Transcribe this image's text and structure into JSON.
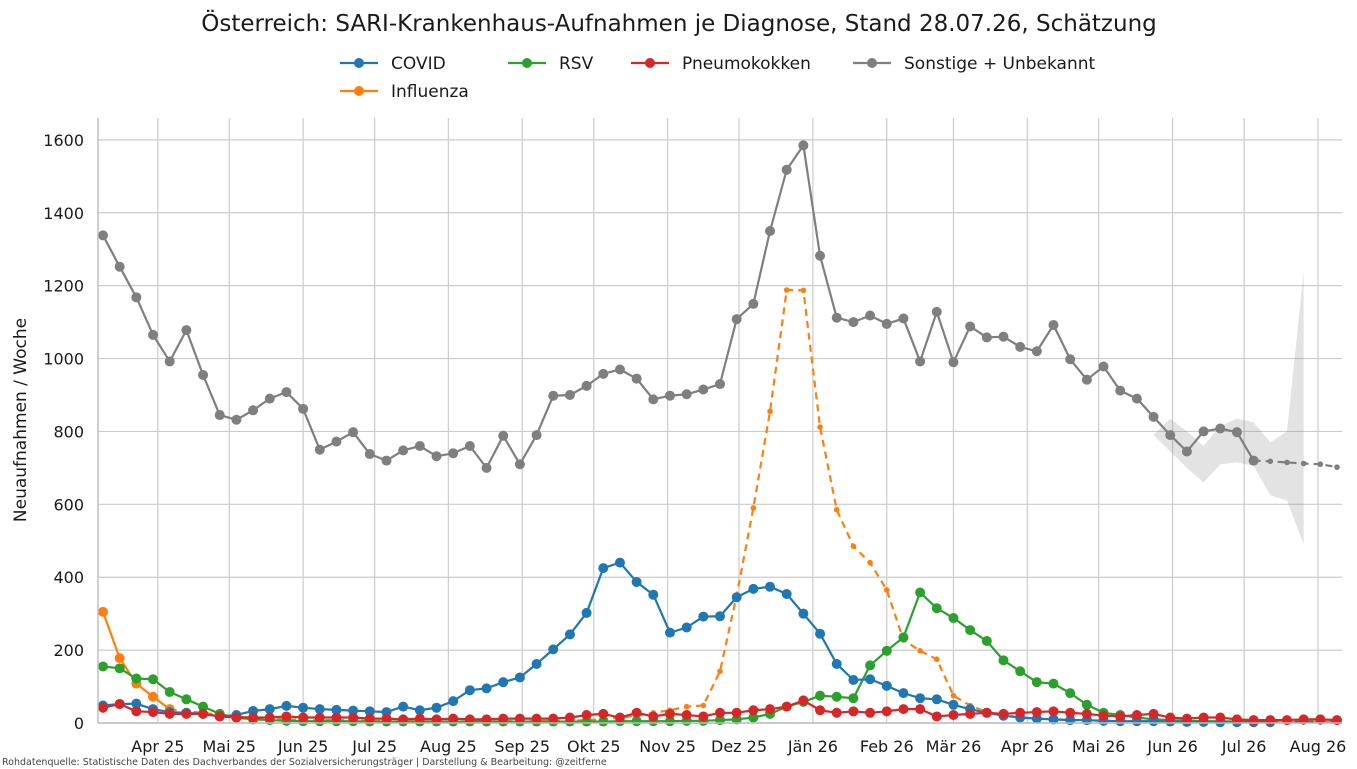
{
  "chart_data": {
    "type": "line",
    "title": "Österreich: SARI-Krankenhaus-Aufnahmen je Diagnose, Stand 28.07.26, Schätzung",
    "ylabel": "Neuaufnahmen / Woche",
    "xlabel": "",
    "ylim": [
      0,
      1660
    ],
    "yticks": [
      0,
      200,
      400,
      600,
      800,
      1000,
      1200,
      1400,
      1600
    ],
    "xlim": [
      -0.3,
      74.3
    ],
    "x_unit": "weeks since first point",
    "xticks": [
      {
        "label": "Apr 25",
        "x": 3.29
      },
      {
        "label": "Mai 25",
        "x": 7.57
      },
      {
        "label": "Jun 25",
        "x": 12
      },
      {
        "label": "Jul 25",
        "x": 16.29
      },
      {
        "label": "Aug 25",
        "x": 20.71
      },
      {
        "label": "Sep 25",
        "x": 25.14
      },
      {
        "label": "Okt 25",
        "x": 29.43
      },
      {
        "label": "Nov 25",
        "x": 33.86
      },
      {
        "label": "Dez 25",
        "x": 38.14
      },
      {
        "label": "Jän 26",
        "x": 42.57
      },
      {
        "label": "Feb 26",
        "x": 47
      },
      {
        "label": "Mär 26",
        "x": 51
      },
      {
        "label": "Apr 26",
        "x": 55.43
      },
      {
        "label": "Mai 26",
        "x": 59.71
      },
      {
        "label": "Jun 26",
        "x": 64.14
      },
      {
        "label": "Jul 26",
        "x": 68.43
      },
      {
        "label": "Aug 26",
        "x": 72.86
      }
    ],
    "grid": true,
    "legend_position": "top-center",
    "series": [
      {
        "name": "COVID",
        "color": "#1f77b4",
        "values": [
          48,
          52,
          53,
          38,
          30,
          28,
          25,
          18,
          22,
          33,
          38,
          47,
          42,
          38,
          36,
          34,
          32,
          30,
          45,
          35,
          42,
          60,
          90,
          95,
          112,
          125,
          162,
          202,
          243,
          302,
          425,
          440,
          387,
          352,
          248,
          262,
          292,
          293,
          345,
          368,
          374,
          354,
          300,
          245,
          162,
          118,
          120,
          102,
          82,
          68,
          65,
          50,
          38,
          28,
          20,
          15,
          12,
          10,
          8,
          8,
          6,
          5,
          5,
          5,
          4,
          3,
          3,
          2,
          2,
          2,
          2,
          2,
          3,
          3,
          4
        ],
        "solid_until": 70
      },
      {
        "name": "Influenza",
        "color": "#ff7f0e",
        "values": [
          305,
          178,
          108,
          72,
          38,
          32,
          28,
          22,
          18,
          14,
          12,
          10,
          9,
          8,
          8,
          7,
          6,
          5,
          5,
          5,
          5,
          4,
          4,
          4,
          5,
          5,
          5,
          6,
          6,
          8,
          10,
          15,
          20,
          28,
          35,
          45,
          48,
          142,
          350,
          590,
          855,
          1188,
          1187,
          812,
          585,
          485,
          440,
          365,
          228,
          198,
          175,
          75,
          48,
          30,
          22,
          15,
          12,
          10,
          8,
          7,
          6,
          5,
          5,
          5,
          4,
          4,
          4,
          4,
          3,
          3,
          3,
          3,
          3,
          3,
          3
        ],
        "solid_until": 4
      },
      {
        "name": "RSV",
        "color": "#2ca02c",
        "values": [
          155,
          150,
          122,
          120,
          85,
          65,
          45,
          25,
          15,
          10,
          8,
          6,
          5,
          5,
          5,
          5,
          4,
          4,
          4,
          4,
          4,
          4,
          4,
          4,
          4,
          4,
          4,
          4,
          4,
          4,
          4,
          5,
          5,
          5,
          5,
          6,
          6,
          8,
          10,
          15,
          25,
          45,
          58,
          75,
          72,
          68,
          158,
          198,
          235,
          358,
          315,
          288,
          255,
          225,
          172,
          142,
          112,
          108,
          82,
          50,
          28,
          22,
          15,
          10,
          8,
          6,
          5,
          5,
          4,
          4,
          4,
          4,
          3,
          3,
          3
        ],
        "solid_until": 70
      },
      {
        "name": "Pneumokokken",
        "color": "#d62728",
        "values": [
          42,
          52,
          32,
          30,
          25,
          25,
          25,
          18,
          15,
          15,
          15,
          18,
          15,
          15,
          15,
          15,
          12,
          12,
          10,
          12,
          10,
          12,
          10,
          10,
          12,
          12,
          12,
          12,
          15,
          22,
          25,
          15,
          28,
          18,
          25,
          22,
          18,
          28,
          28,
          35,
          38,
          45,
          62,
          35,
          28,
          32,
          28,
          32,
          38,
          38,
          18,
          22,
          25,
          28,
          25,
          28,
          30,
          32,
          28,
          25,
          20,
          18,
          22,
          25,
          15,
          12,
          15,
          15,
          10,
          8,
          8,
          8,
          10,
          10,
          8
        ],
        "solid_until": 74
      },
      {
        "name": "Sonstige + Unbekannt",
        "color": "#7f7f7f",
        "values": [
          1338,
          1252,
          1168,
          1065,
          992,
          1078,
          955,
          845,
          832,
          858,
          890,
          908,
          862,
          750,
          772,
          798,
          738,
          720,
          748,
          760,
          732,
          740,
          760,
          700,
          788,
          710,
          790,
          898,
          900,
          925,
          958,
          970,
          945,
          888,
          898,
          902,
          915,
          930,
          1108,
          1150,
          1350,
          1518,
          1585,
          1282,
          1112,
          1100,
          1118,
          1095,
          1110,
          992,
          1128,
          990,
          1088,
          1058,
          1060,
          1032,
          1020,
          1092,
          998,
          942,
          978,
          912,
          890,
          840,
          790,
          745,
          800,
          808,
          798,
          720,
          718,
          715,
          712,
          710,
          702
        ],
        "solid_until": 69,
        "band_start": 63,
        "band_lower": [
          790,
          745,
          700,
          660,
          710,
          715,
          705,
          625,
          610,
          490
        ],
        "band_upper": [
          790,
          835,
          800,
          760,
          815,
          835,
          825,
          770,
          800,
          1238
        ]
      }
    ],
    "legend_order": [
      "COVID",
      "Influenza",
      "RSV",
      "Pneumokokken",
      "Sonstige + Unbekannt"
    ],
    "source": "Rohdatenquelle: Statistische Daten des Dachverbandes der Sozialversicherungsträger | Darstellung & Bearbeitung: @zeitferne"
  }
}
